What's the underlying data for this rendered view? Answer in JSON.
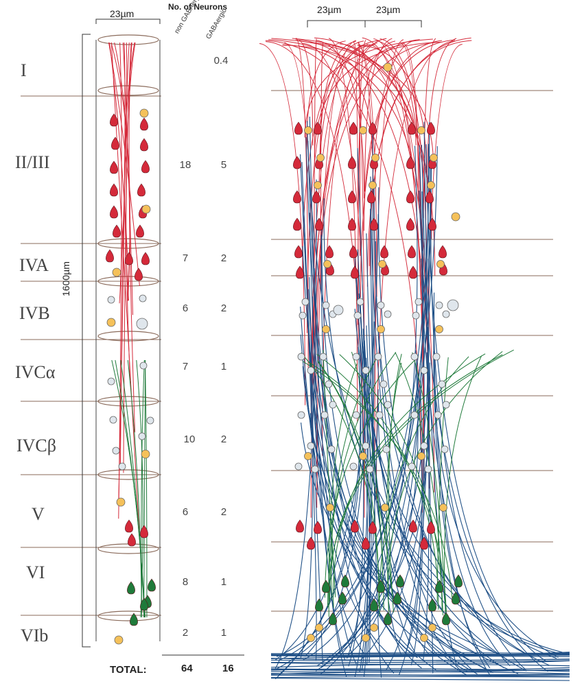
{
  "header": {
    "column_width": "23µm",
    "neuron_count_title": "No. of Neurons",
    "col_nonGABA": "non GABAergic",
    "col_GABA": "GABAergic",
    "right_width_a": "23µm",
    "right_width_b": "23µm",
    "depth": "1600µm"
  },
  "layers": [
    {
      "name": "I",
      "non_gaba": "",
      "gaba": "0.4"
    },
    {
      "name": "II/III",
      "non_gaba": "18",
      "gaba": "5"
    },
    {
      "name": "IVA",
      "non_gaba": "7",
      "gaba": "2"
    },
    {
      "name": "IVB",
      "non_gaba": "6",
      "gaba": "2"
    },
    {
      "name": "IVCα",
      "non_gaba": "7",
      "gaba": "1"
    },
    {
      "name": "IVCβ",
      "non_gaba": "10",
      "gaba": "2"
    },
    {
      "name": "V",
      "non_gaba": "6",
      "gaba": "2"
    },
    {
      "name": "VI",
      "non_gaba": "8",
      "gaba": "1"
    },
    {
      "name": "VIb",
      "non_gaba": "2",
      "gaba": "1"
    }
  ],
  "totals": {
    "label": "TOTAL:",
    "non_gaba": "64",
    "gaba": "16"
  },
  "colors": {
    "pyramidal": "#d42a3a",
    "gaba": "#f5c15a",
    "stellate": "#dfe6ec",
    "spiny_green": "#1f7a3a",
    "axon_blue": "#1e4f86",
    "layer_line": "#8a6a5a"
  }
}
